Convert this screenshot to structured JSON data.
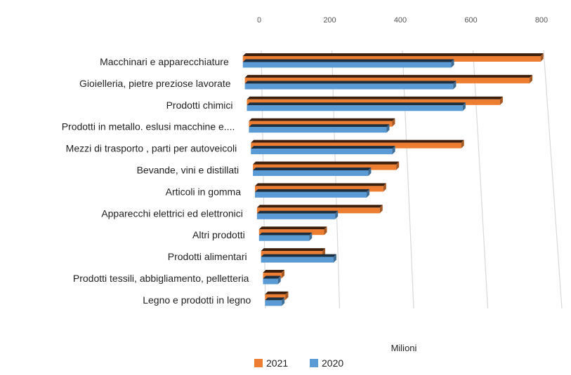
{
  "chart_data": {
    "type": "bar",
    "orientation": "horizontal",
    "style": "3d",
    "x_axis_position": "top",
    "x_unit_label": "Milioni",
    "xlim": [
      0,
      800
    ],
    "xticks": [
      0,
      200,
      400,
      600,
      800
    ],
    "grid": true,
    "legend_position": "bottom",
    "categories": [
      "Macchinari e apparecchiature",
      "Gioielleria, pietre preziose lavorate",
      "Prodotti chimici",
      "Prodotti in metallo. eslusi macchine e....",
      "Mezzi di trasporto , parti per autoveicoli",
      "Bevande, vini e distillati",
      "Articoli in gomma",
      "Apparecchi elettrici ed elettronici",
      "Altri prodotti",
      "Prodotti alimentari",
      "Prodotti tessili, abbigliamento, pelletteria",
      "Legno  e prodotti in legno"
    ],
    "series": [
      {
        "name": "2021",
        "color": "#ED7D31",
        "values": [
          800,
          765,
          680,
          385,
          565,
          385,
          345,
          330,
          175,
          165,
          50,
          55
        ]
      },
      {
        "name": "2020",
        "color": "#5B9BD5",
        "values": [
          560,
          560,
          580,
          370,
          380,
          310,
          300,
          210,
          135,
          195,
          40,
          45
        ]
      }
    ]
  }
}
